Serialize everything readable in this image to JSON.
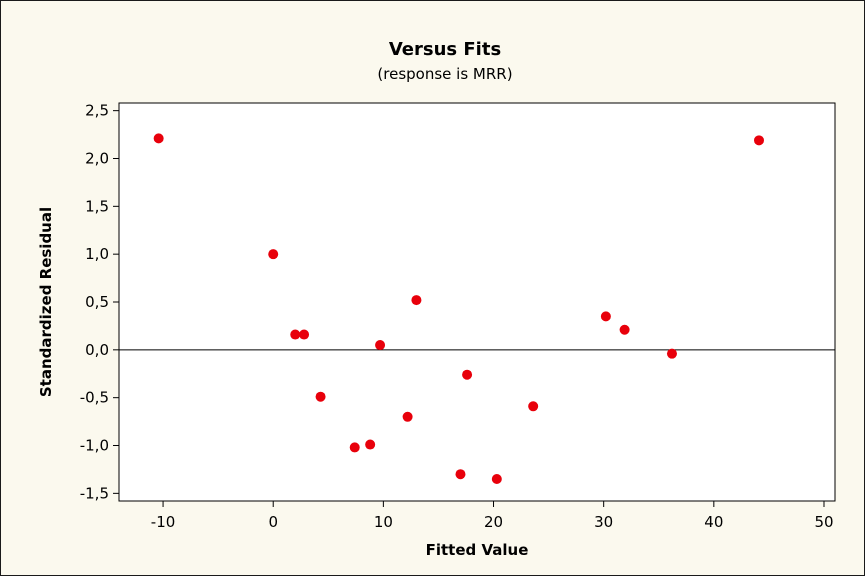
{
  "chart_data": {
    "type": "scatter",
    "title": "Versus Fits",
    "subtitle": "(response is MRR)",
    "xlabel": "Fitted Value",
    "ylabel": "Standardized Residual",
    "xlim": [
      -14,
      51
    ],
    "ylim": [
      -1.58,
      2.58
    ],
    "x_ticks": [
      -10,
      0,
      10,
      20,
      30,
      40,
      50
    ],
    "x_tick_labels": [
      "-10",
      "0",
      "10",
      "20",
      "30",
      "40",
      "50"
    ],
    "y_ticks": [
      -1.5,
      -1.0,
      -0.5,
      0.0,
      0.5,
      1.0,
      1.5,
      2.0,
      2.5
    ],
    "y_tick_labels": [
      "-1,5",
      "-1,0",
      "-0,5",
      "0,0",
      "0,5",
      "1,0",
      "1,5",
      "2,0",
      "2,5"
    ],
    "reference_line_y": 0,
    "grid": false,
    "point_color": "#e8000b",
    "points": [
      {
        "x": -10.4,
        "y": 2.21
      },
      {
        "x": 0.0,
        "y": 1.0
      },
      {
        "x": 2.0,
        "y": 0.16
      },
      {
        "x": 2.8,
        "y": 0.16
      },
      {
        "x": 4.3,
        "y": -0.49
      },
      {
        "x": 7.4,
        "y": -1.02
      },
      {
        "x": 8.8,
        "y": -0.99
      },
      {
        "x": 9.7,
        "y": 0.05
      },
      {
        "x": 12.2,
        "y": -0.7
      },
      {
        "x": 13.0,
        "y": 0.52
      },
      {
        "x": 17.0,
        "y": -1.3
      },
      {
        "x": 17.6,
        "y": -0.26
      },
      {
        "x": 20.3,
        "y": -1.35
      },
      {
        "x": 23.6,
        "y": -0.59
      },
      {
        "x": 30.2,
        "y": 0.35
      },
      {
        "x": 31.9,
        "y": 0.21
      },
      {
        "x": 36.2,
        "y": -0.04
      },
      {
        "x": 44.1,
        "y": 2.19
      }
    ]
  }
}
